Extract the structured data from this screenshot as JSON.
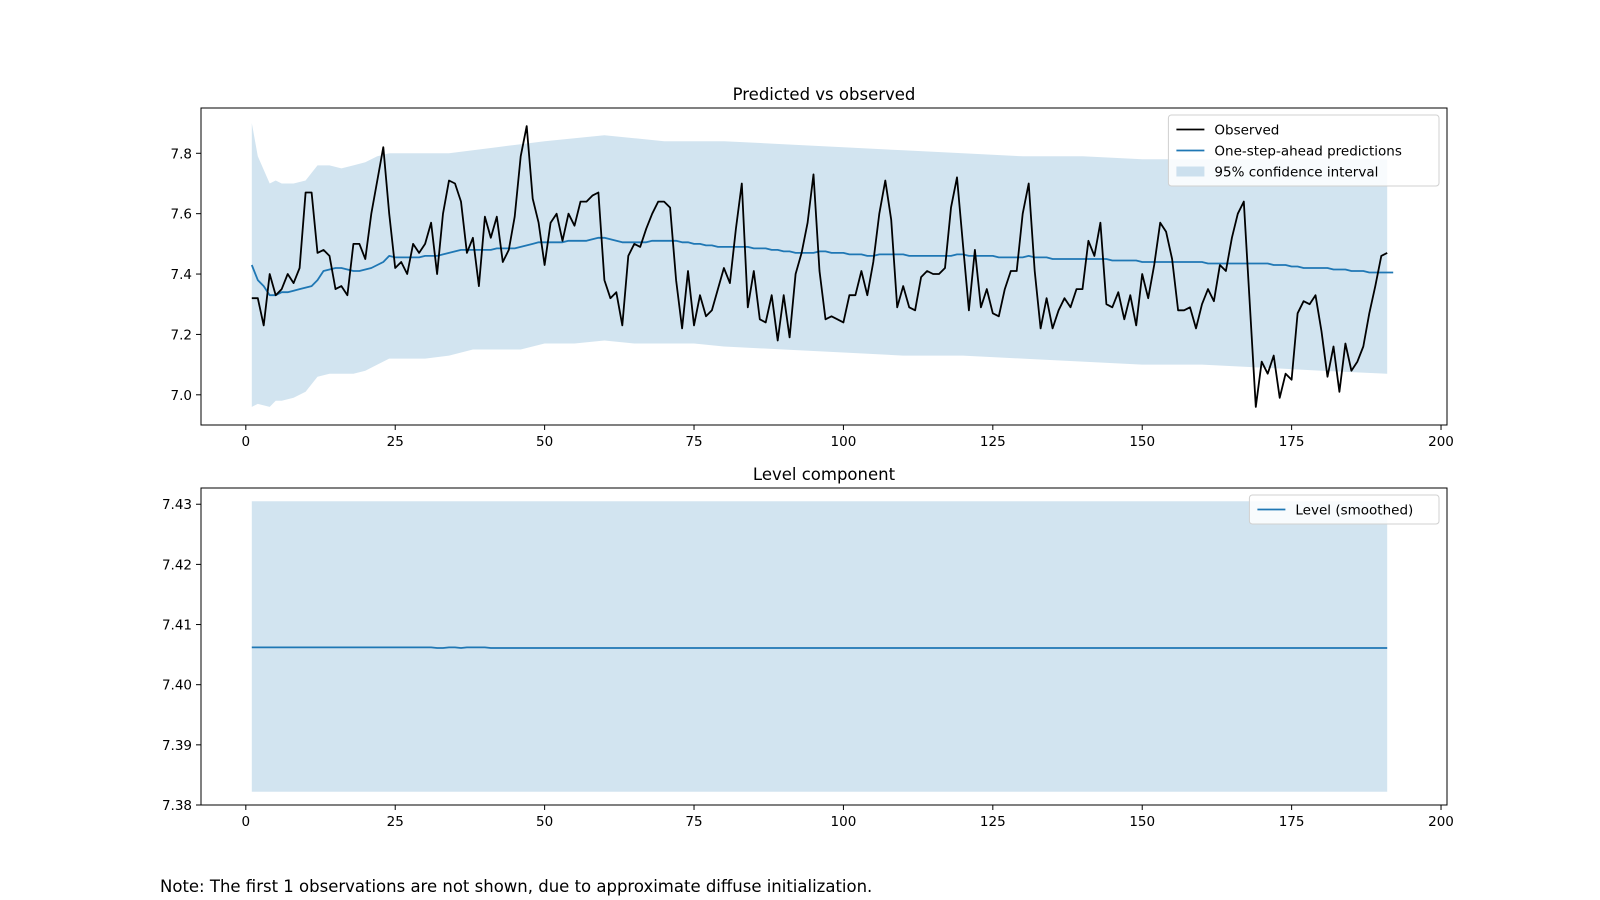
{
  "note": "Note: The first 1 observations are not shown, due to approximate diffuse initialization.",
  "colors": {
    "observed": "#000000",
    "prediction": "#1f77b4",
    "band": "#1f77b4",
    "band_opacity": 0.2
  },
  "chart_data": [
    {
      "type": "line",
      "title": "Predicted vs observed",
      "xlabel": "",
      "ylabel": "",
      "xlim": [
        -7.5,
        201
      ],
      "ylim": [
        6.9,
        7.95
      ],
      "xticks": [
        0,
        25,
        50,
        75,
        100,
        125,
        150,
        175,
        200
      ],
      "xtick_labels": [
        "0",
        "25",
        "50",
        "75",
        "100",
        "125",
        "150",
        "175",
        "200"
      ],
      "yticks": [
        7.0,
        7.2,
        7.4,
        7.6,
        7.8
      ],
      "ytick_labels": [
        "7.0",
        "7.2",
        "7.4",
        "7.6",
        "7.8"
      ],
      "grid": false,
      "legend_position": "top-right",
      "legend": [
        "Observed",
        "One-step-ahead predictions",
        "95% confidence interval"
      ],
      "x_start": 1,
      "series": [
        {
          "name": "Observed",
          "color": "#000000",
          "values": [
            7.32,
            7.32,
            7.23,
            7.4,
            7.33,
            7.35,
            7.4,
            7.37,
            7.42,
            7.67,
            7.67,
            7.47,
            7.48,
            7.46,
            7.35,
            7.36,
            7.33,
            7.5,
            7.5,
            7.45,
            7.6,
            7.71,
            7.82,
            7.6,
            7.42,
            7.44,
            7.4,
            7.5,
            7.47,
            7.5,
            7.57,
            7.4,
            7.6,
            7.71,
            7.7,
            7.64,
            7.47,
            7.52,
            7.36,
            7.59,
            7.52,
            7.59,
            7.44,
            7.48,
            7.59,
            7.79,
            7.89,
            7.65,
            7.57,
            7.43,
            7.57,
            7.6,
            7.51,
            7.6,
            7.56,
            7.64,
            7.64,
            7.66,
            7.67,
            7.38,
            7.32,
            7.34,
            7.23,
            7.46,
            7.5,
            7.49,
            7.55,
            7.6,
            7.64,
            7.64,
            7.62,
            7.38,
            7.22,
            7.41,
            7.23,
            7.33,
            7.26,
            7.28,
            7.35,
            7.42,
            7.37,
            7.55,
            7.7,
            7.29,
            7.41,
            7.25,
            7.24,
            7.33,
            7.18,
            7.33,
            7.19,
            7.4,
            7.47,
            7.57,
            7.73,
            7.41,
            7.25,
            7.26,
            7.25,
            7.24,
            7.33,
            7.33,
            7.41,
            7.33,
            7.44,
            7.6,
            7.71,
            7.58,
            7.29,
            7.36,
            7.29,
            7.28,
            7.39,
            7.41,
            7.4,
            7.4,
            7.42,
            7.62,
            7.72,
            7.5,
            7.28,
            7.48,
            7.29,
            7.35,
            7.27,
            7.26,
            7.35,
            7.41,
            7.41,
            7.6,
            7.7,
            7.41,
            7.22,
            7.32,
            7.22,
            7.28,
            7.32,
            7.29,
            7.35,
            7.35,
            7.51,
            7.46,
            7.57,
            7.3,
            7.29,
            7.34,
            7.25,
            7.33,
            7.23,
            7.4,
            7.32,
            7.43,
            7.57,
            7.54,
            7.45,
            7.28,
            7.28,
            7.29,
            7.22,
            7.3,
            7.35,
            7.31,
            7.43,
            7.41,
            7.52,
            7.6,
            7.64,
            7.3,
            6.96,
            7.11,
            7.07,
            7.13,
            6.99,
            7.07,
            7.05,
            7.27,
            7.31,
            7.3,
            7.33,
            7.21,
            7.06,
            7.16,
            7.01,
            7.17,
            7.08,
            7.11,
            7.16,
            7.27,
            7.36,
            7.46,
            7.47
          ]
        },
        {
          "name": "One-step-ahead predictions",
          "color": "#1f77b4",
          "values": [
            7.43,
            7.38,
            7.36,
            7.33,
            7.33,
            7.34,
            7.34,
            7.345,
            7.35,
            7.355,
            7.36,
            7.38,
            7.41,
            7.415,
            7.42,
            7.42,
            7.415,
            7.41,
            7.41,
            7.415,
            7.42,
            7.43,
            7.44,
            7.46,
            7.455,
            7.455,
            7.455,
            7.455,
            7.455,
            7.46,
            7.46,
            7.46,
            7.465,
            7.47,
            7.475,
            7.48,
            7.48,
            7.48,
            7.48,
            7.48,
            7.48,
            7.485,
            7.485,
            7.485,
            7.485,
            7.49,
            7.495,
            7.5,
            7.505,
            7.505,
            7.505,
            7.505,
            7.505,
            7.51,
            7.51,
            7.51,
            7.51,
            7.515,
            7.52,
            7.52,
            7.515,
            7.51,
            7.505,
            7.505,
            7.505,
            7.505,
            7.505,
            7.51,
            7.51,
            7.51,
            7.51,
            7.51,
            7.505,
            7.505,
            7.5,
            7.5,
            7.495,
            7.495,
            7.49,
            7.49,
            7.49,
            7.49,
            7.49,
            7.49,
            7.485,
            7.485,
            7.485,
            7.48,
            7.48,
            7.475,
            7.475,
            7.47,
            7.47,
            7.47,
            7.47,
            7.475,
            7.475,
            7.47,
            7.47,
            7.47,
            7.465,
            7.465,
            7.465,
            7.46,
            7.46,
            7.465,
            7.465,
            7.465,
            7.465,
            7.465,
            7.46,
            7.46,
            7.46,
            7.46,
            7.46,
            7.46,
            7.46,
            7.46,
            7.465,
            7.465,
            7.46,
            7.46,
            7.46,
            7.46,
            7.46,
            7.455,
            7.455,
            7.455,
            7.455,
            7.455,
            7.46,
            7.455,
            7.455,
            7.455,
            7.45,
            7.45,
            7.45,
            7.45,
            7.45,
            7.45,
            7.45,
            7.45,
            7.45,
            7.45,
            7.445,
            7.445,
            7.445,
            7.445,
            7.445,
            7.44,
            7.44,
            7.44,
            7.44,
            7.44,
            7.44,
            7.44,
            7.44,
            7.44,
            7.44,
            7.44,
            7.435,
            7.435,
            7.435,
            7.435,
            7.435,
            7.435,
            7.435,
            7.435,
            7.435,
            7.435,
            7.435,
            7.43,
            7.43,
            7.43,
            7.425,
            7.425,
            7.42,
            7.42,
            7.42,
            7.42,
            7.42,
            7.415,
            7.415,
            7.415,
            7.41,
            7.41,
            7.41,
            7.405,
            7.405,
            7.405,
            7.405,
            7.405
          ]
        }
      ],
      "confidence_interval": {
        "name": "95% confidence interval",
        "x": [
          1,
          2,
          4,
          5,
          6,
          8,
          10,
          12,
          14,
          16,
          18,
          20,
          22,
          24,
          26,
          30,
          34,
          38,
          42,
          46,
          50,
          55,
          60,
          65,
          70,
          75,
          80,
          90,
          100,
          110,
          120,
          130,
          140,
          150,
          160,
          170,
          180,
          191
        ],
        "lower": [
          6.96,
          6.97,
          6.96,
          6.98,
          6.98,
          6.99,
          7.01,
          7.06,
          7.07,
          7.07,
          7.07,
          7.08,
          7.1,
          7.12,
          7.12,
          7.12,
          7.13,
          7.15,
          7.15,
          7.15,
          7.17,
          7.17,
          7.18,
          7.17,
          7.17,
          7.17,
          7.16,
          7.15,
          7.14,
          7.13,
          7.13,
          7.12,
          7.11,
          7.1,
          7.1,
          7.09,
          7.08,
          7.07
        ],
        "upper": [
          7.9,
          7.79,
          7.7,
          7.71,
          7.7,
          7.7,
          7.71,
          7.76,
          7.76,
          7.75,
          7.76,
          7.77,
          7.79,
          7.8,
          7.8,
          7.8,
          7.8,
          7.81,
          7.82,
          7.83,
          7.84,
          7.85,
          7.86,
          7.85,
          7.84,
          7.84,
          7.84,
          7.83,
          7.82,
          7.81,
          7.8,
          7.79,
          7.79,
          7.78,
          7.78,
          7.78,
          7.78,
          7.78
        ]
      }
    },
    {
      "type": "line",
      "title": "Level component",
      "xlabel": "",
      "ylabel": "",
      "xlim": [
        -7.5,
        201
      ],
      "ylim": [
        7.38,
        7.4327
      ],
      "xticks": [
        0,
        25,
        50,
        75,
        100,
        125,
        150,
        175,
        200
      ],
      "xtick_labels": [
        "0",
        "25",
        "50",
        "75",
        "100",
        "125",
        "150",
        "175",
        "200"
      ],
      "yticks": [
        7.38,
        7.39,
        7.4,
        7.41,
        7.42,
        7.43
      ],
      "ytick_labels": [
        "7.38",
        "7.39",
        "7.40",
        "7.41",
        "7.42",
        "7.43"
      ],
      "grid": false,
      "legend_position": "top-right",
      "legend": [
        "Level (smoothed)"
      ],
      "series": [
        {
          "name": "Level (smoothed)",
          "color": "#1f77b4",
          "x": [
            1,
            31,
            32,
            33,
            34,
            35,
            36,
            37,
            40,
            41,
            42,
            191
          ],
          "values": [
            7.4062,
            7.4062,
            7.4061,
            7.4061,
            7.4062,
            7.4062,
            7.4061,
            7.4062,
            7.4062,
            7.4061,
            7.4061,
            7.4061
          ]
        }
      ],
      "confidence_interval": {
        "name": "",
        "x": [
          1,
          191
        ],
        "lower": [
          7.3822,
          7.3822
        ],
        "upper": [
          7.4305,
          7.4305
        ]
      }
    }
  ]
}
